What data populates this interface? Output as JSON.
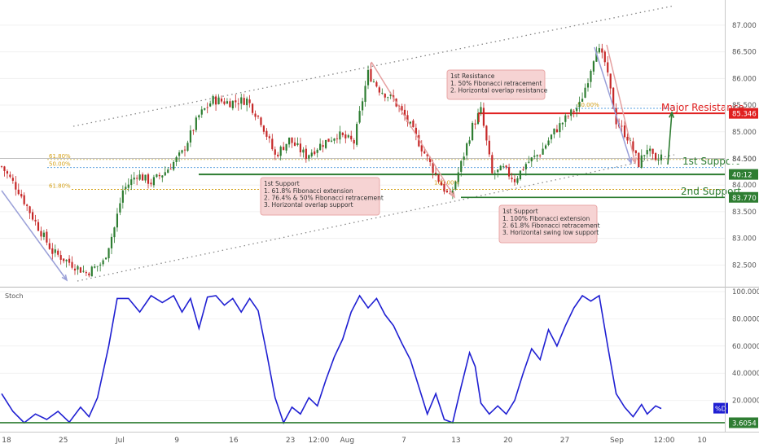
{
  "chart_data": [
    {
      "type": "candlestick",
      "panel": "price",
      "title": "",
      "ylim": [
        82.2,
        87.35
      ],
      "y_tick_labels": [
        "82.500",
        "83.000",
        "83.500",
        "84.000",
        "84.500",
        "85.000",
        "85.500",
        "86.000",
        "86.500",
        "87.000"
      ],
      "y_ticks": [
        82.5,
        83.0,
        83.5,
        84.0,
        84.5,
        85.0,
        85.5,
        86.0,
        86.5,
        87.0
      ],
      "price_path": [
        {
          "t": 0,
          "v": 84.35
        },
        {
          "t": 6,
          "v": 83.9
        },
        {
          "t": 12,
          "v": 83.3
        },
        {
          "t": 18,
          "v": 82.75
        },
        {
          "t": 24,
          "v": 82.55
        },
        {
          "t": 30,
          "v": 82.35
        },
        {
          "t": 36,
          "v": 82.55
        },
        {
          "t": 40,
          "v": 83.2
        },
        {
          "t": 43,
          "v": 83.9
        },
        {
          "t": 48,
          "v": 84.2
        },
        {
          "t": 53,
          "v": 84.05
        },
        {
          "t": 58,
          "v": 84.25
        },
        {
          "t": 64,
          "v": 84.6
        },
        {
          "t": 70,
          "v": 85.3
        },
        {
          "t": 75,
          "v": 85.6
        },
        {
          "t": 81,
          "v": 85.55
        },
        {
          "t": 87,
          "v": 85.6
        },
        {
          "t": 92,
          "v": 85.2
        },
        {
          "t": 97,
          "v": 84.55
        },
        {
          "t": 102,
          "v": 84.85
        },
        {
          "t": 108,
          "v": 84.55
        },
        {
          "t": 113,
          "v": 84.75
        },
        {
          "t": 119,
          "v": 84.95
        },
        {
          "t": 125,
          "v": 84.8
        },
        {
          "t": 128,
          "v": 85.6
        },
        {
          "t": 130,
          "v": 86.1
        },
        {
          "t": 134,
          "v": 85.8
        },
        {
          "t": 139,
          "v": 85.6
        },
        {
          "t": 144,
          "v": 85.2
        },
        {
          "t": 149,
          "v": 84.7
        },
        {
          "t": 155,
          "v": 84.1
        },
        {
          "t": 159,
          "v": 83.75
        },
        {
          "t": 163,
          "v": 84.4
        },
        {
          "t": 167,
          "v": 85.1
        },
        {
          "t": 170,
          "v": 85.4
        },
        {
          "t": 174,
          "v": 84.2
        },
        {
          "t": 178,
          "v": 84.3
        },
        {
          "t": 182,
          "v": 84.1
        },
        {
          "t": 186,
          "v": 84.4
        },
        {
          "t": 191,
          "v": 84.6
        },
        {
          "t": 196,
          "v": 85.0
        },
        {
          "t": 201,
          "v": 85.3
        },
        {
          "t": 205,
          "v": 85.5
        },
        {
          "t": 208,
          "v": 86.0
        },
        {
          "t": 211,
          "v": 86.6
        },
        {
          "t": 214,
          "v": 86.3
        },
        {
          "t": 218,
          "v": 85.2
        },
        {
          "t": 222,
          "v": 84.9
        },
        {
          "t": 226,
          "v": 84.4
        },
        {
          "t": 229,
          "v": 84.7
        },
        {
          "t": 232,
          "v": 84.4
        },
        {
          "t": 234,
          "v": 84.55
        }
      ],
      "levels": [
        {
          "name": "Major Resistance",
          "value": 85.346,
          "label": "85.346",
          "color": "#e02020"
        },
        {
          "name": "1st Support",
          "value": 84.2,
          "label": "40:12",
          "color": "#2e7d32"
        },
        {
          "name": "2nd Support",
          "value": 83.77,
          "label": "83.770",
          "color": "#2e7d32"
        },
        {
          "name": "last",
          "value": 84.5,
          "label": "84.500",
          "color": "#555555"
        }
      ],
      "fib_labels": [
        {
          "text": "61.80%",
          "price": 84.48
        },
        {
          "text": "50.00%",
          "price": 84.33
        },
        {
          "text": "61.80%",
          "price": 83.92
        },
        {
          "text": "100.00%",
          "price": 83.98
        },
        {
          "text": "50.00%",
          "price": 85.44
        }
      ],
      "annotations": [
        {
          "title": "1st Resistance",
          "lines": [
            "1. 50% Fibonacci retracement",
            "2. Horizontal overlap resistance"
          ]
        },
        {
          "title": "1st Support",
          "lines": [
            "1. 61.8% Fibonacci extension",
            "2. 76.4% & 50% Fibonacci retracement",
            "3. Horizontal overlap support"
          ]
        },
        {
          "title": "1st Support",
          "lines": [
            "1. 100% Fibonacci extension",
            "2. 61.8% Fibonacci retracement",
            "3. Horizontal swing low support"
          ]
        }
      ]
    },
    {
      "type": "line",
      "panel": "oscillator",
      "title": "Stoch",
      "ylim": [
        0,
        100
      ],
      "y_tick_labels": [
        "20.0000",
        "40.0000",
        "60.0000",
        "80.0000",
        "100.0000"
      ],
      "y_ticks": [
        20,
        40,
        60,
        80,
        100
      ],
      "series": [
        {
          "name": "%D",
          "color": "#1f1fd2",
          "points": [
            {
              "t": 0,
              "v": 25
            },
            {
              "t": 4,
              "v": 12
            },
            {
              "t": 8,
              "v": 3.6
            },
            {
              "t": 12,
              "v": 10
            },
            {
              "t": 16,
              "v": 6
            },
            {
              "t": 20,
              "v": 12
            },
            {
              "t": 24,
              "v": 4
            },
            {
              "t": 28,
              "v": 15
            },
            {
              "t": 31,
              "v": 8
            },
            {
              "t": 34,
              "v": 22
            },
            {
              "t": 38,
              "v": 60
            },
            {
              "t": 41,
              "v": 95
            },
            {
              "t": 45,
              "v": 95
            },
            {
              "t": 49,
              "v": 85
            },
            {
              "t": 53,
              "v": 97
            },
            {
              "t": 57,
              "v": 92
            },
            {
              "t": 61,
              "v": 97
            },
            {
              "t": 64,
              "v": 85
            },
            {
              "t": 67,
              "v": 95
            },
            {
              "t": 70,
              "v": 73
            },
            {
              "t": 73,
              "v": 96
            },
            {
              "t": 76,
              "v": 97
            },
            {
              "t": 79,
              "v": 90
            },
            {
              "t": 82,
              "v": 95
            },
            {
              "t": 85,
              "v": 85
            },
            {
              "t": 88,
              "v": 95
            },
            {
              "t": 91,
              "v": 86
            },
            {
              "t": 94,
              "v": 55
            },
            {
              "t": 97,
              "v": 22
            },
            {
              "t": 100,
              "v": 3.6
            },
            {
              "t": 103,
              "v": 15
            },
            {
              "t": 106,
              "v": 10
            },
            {
              "t": 109,
              "v": 22
            },
            {
              "t": 112,
              "v": 16
            },
            {
              "t": 115,
              "v": 35
            },
            {
              "t": 118,
              "v": 52
            },
            {
              "t": 121,
              "v": 65
            },
            {
              "t": 124,
              "v": 85
            },
            {
              "t": 127,
              "v": 97
            },
            {
              "t": 130,
              "v": 88
            },
            {
              "t": 133,
              "v": 95
            },
            {
              "t": 136,
              "v": 83
            },
            {
              "t": 139,
              "v": 75
            },
            {
              "t": 142,
              "v": 62
            },
            {
              "t": 145,
              "v": 50
            },
            {
              "t": 148,
              "v": 30
            },
            {
              "t": 151,
              "v": 10
            },
            {
              "t": 154,
              "v": 25
            },
            {
              "t": 157,
              "v": 6
            },
            {
              "t": 160,
              "v": 3.6
            },
            {
              "t": 163,
              "v": 30
            },
            {
              "t": 166,
              "v": 55
            },
            {
              "t": 168,
              "v": 45
            },
            {
              "t": 170,
              "v": 18
            },
            {
              "t": 173,
              "v": 10
            },
            {
              "t": 176,
              "v": 16
            },
            {
              "t": 179,
              "v": 10
            },
            {
              "t": 182,
              "v": 20
            },
            {
              "t": 185,
              "v": 40
            },
            {
              "t": 188,
              "v": 58
            },
            {
              "t": 191,
              "v": 50
            },
            {
              "t": 194,
              "v": 72
            },
            {
              "t": 197,
              "v": 60
            },
            {
              "t": 200,
              "v": 75
            },
            {
              "t": 203,
              "v": 88
            },
            {
              "t": 206,
              "v": 97
            },
            {
              "t": 209,
              "v": 93
            },
            {
              "t": 212,
              "v": 97
            },
            {
              "t": 215,
              "v": 60
            },
            {
              "t": 218,
              "v": 25
            },
            {
              "t": 221,
              "v": 15
            },
            {
              "t": 224,
              "v": 8
            },
            {
              "t": 227,
              "v": 17
            },
            {
              "t": 229,
              "v": 10
            },
            {
              "t": 232,
              "v": 16
            },
            {
              "t": 234,
              "v": 14
            }
          ]
        }
      ],
      "levels": [
        {
          "value": 3.6054,
          "label": "3.6054",
          "color": "#2e7d32"
        }
      ]
    }
  ],
  "x_axis": {
    "labels": [
      {
        "text": "18",
        "t": 4
      },
      {
        "text": "25",
        "t": 28
      },
      {
        "text": "Jul",
        "t": 52
      },
      {
        "text": "9",
        "t": 76
      },
      {
        "text": "16",
        "t": 100
      },
      {
        "text": "23",
        "t": 124
      },
      {
        "text": "12:00",
        "t": 136
      },
      {
        "text": "Aug",
        "t": 148
      },
      {
        "text": "7",
        "t": 172
      },
      {
        "text": "13",
        "t": 194
      },
      {
        "text": "20",
        "t": 216
      },
      {
        "text": "27",
        "t": 240
      },
      {
        "text": "Sep",
        "t": 262
      },
      {
        "text": "12:00",
        "t": 282
      },
      {
        "text": "10",
        "t": 298
      }
    ]
  },
  "labels": {
    "major_resistance": "Major Resistance",
    "first_support": "1st Support",
    "second_support": "2nd Support",
    "stoch_title": "Stoch",
    "pct_d": "%D"
  },
  "colors": {
    "candle_up": "#2e7d32",
    "candle_down": "#c62828",
    "resistance": "#e02020",
    "support": "#2e7d32",
    "channel": "#888888",
    "arrow": "#9aa0d8",
    "note_bg": "#f6d3d3",
    "note_border": "#e8a7a7",
    "stoch": "#1f1fd2",
    "fib": "#d4a017"
  }
}
